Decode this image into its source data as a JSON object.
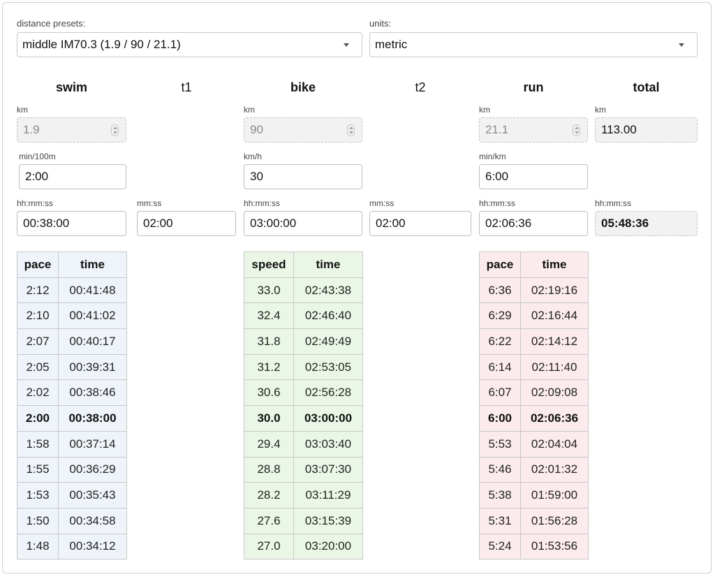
{
  "presets": {
    "label": "distance presets:",
    "value": "middle IM70.3 (1.9 / 90 / 21.1)",
    "icon": "chevron-down-icon"
  },
  "units": {
    "label": "units:",
    "value": "metric",
    "icon": "chevron-down-icon"
  },
  "columns": {
    "swim": {
      "title": "swim",
      "dist_unit": "km",
      "dist": "1.9",
      "pace_unit": "min/100m",
      "pace": "2:00",
      "time_unit": "hh:mm:ss",
      "time": "00:38:00"
    },
    "t1": {
      "title": "t1",
      "time_unit": "mm:ss",
      "time": "02:00"
    },
    "bike": {
      "title": "bike",
      "dist_unit": "km",
      "dist": "90",
      "pace_unit": "km/h",
      "pace": "30",
      "time_unit": "hh:mm:ss",
      "time": "03:00:00"
    },
    "t2": {
      "title": "t2",
      "time_unit": "mm:ss",
      "time": "02:00"
    },
    "run": {
      "title": "run",
      "dist_unit": "km",
      "dist": "21.1",
      "pace_unit": "min/km",
      "pace": "6:00",
      "time_unit": "hh:mm:ss",
      "time": "02:06:36"
    },
    "total": {
      "title": "total",
      "dist_unit": "km",
      "dist": "113.00",
      "time_unit": "hh:mm:ss",
      "time": "05:48:36"
    }
  },
  "tables": {
    "swim": {
      "headers": [
        "pace",
        "time"
      ],
      "selected_index": 5,
      "rows": [
        [
          "2:12",
          "00:41:48"
        ],
        [
          "2:10",
          "00:41:02"
        ],
        [
          "2:07",
          "00:40:17"
        ],
        [
          "2:05",
          "00:39:31"
        ],
        [
          "2:02",
          "00:38:46"
        ],
        [
          "2:00",
          "00:38:00"
        ],
        [
          "1:58",
          "00:37:14"
        ],
        [
          "1:55",
          "00:36:29"
        ],
        [
          "1:53",
          "00:35:43"
        ],
        [
          "1:50",
          "00:34:58"
        ],
        [
          "1:48",
          "00:34:12"
        ]
      ]
    },
    "bike": {
      "headers": [
        "speed",
        "time"
      ],
      "selected_index": 5,
      "rows": [
        [
          "33.0",
          "02:43:38"
        ],
        [
          "32.4",
          "02:46:40"
        ],
        [
          "31.8",
          "02:49:49"
        ],
        [
          "31.2",
          "02:53:05"
        ],
        [
          "30.6",
          "02:56:28"
        ],
        [
          "30.0",
          "03:00:00"
        ],
        [
          "29.4",
          "03:03:40"
        ],
        [
          "28.8",
          "03:07:30"
        ],
        [
          "28.2",
          "03:11:29"
        ],
        [
          "27.6",
          "03:15:39"
        ],
        [
          "27.0",
          "03:20:00"
        ]
      ]
    },
    "run": {
      "headers": [
        "pace",
        "time"
      ],
      "selected_index": 5,
      "rows": [
        [
          "6:36",
          "02:19:16"
        ],
        [
          "6:29",
          "02:16:44"
        ],
        [
          "6:22",
          "02:14:12"
        ],
        [
          "6:14",
          "02:11:40"
        ],
        [
          "6:07",
          "02:09:08"
        ],
        [
          "6:00",
          "02:06:36"
        ],
        [
          "5:53",
          "02:04:04"
        ],
        [
          "5:46",
          "02:01:32"
        ],
        [
          "5:38",
          "01:59:00"
        ],
        [
          "5:31",
          "01:56:28"
        ],
        [
          "5:24",
          "01:53:56"
        ]
      ]
    }
  }
}
